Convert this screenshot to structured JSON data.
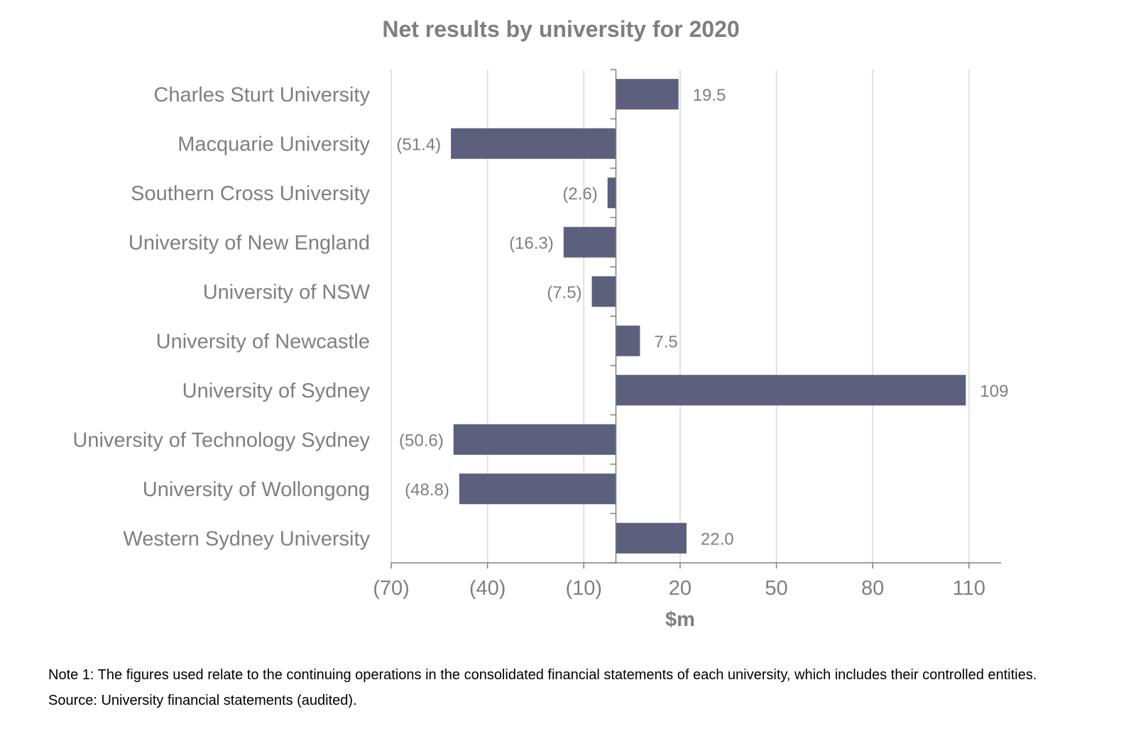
{
  "chart_data": {
    "type": "bar",
    "orientation": "horizontal",
    "title": "Net results by university for 2020",
    "xlabel": "$m",
    "ylabel": "",
    "categories": [
      "Charles Sturt University",
      "Macquarie University",
      "Southern Cross University",
      "University of New England",
      "University of NSW",
      "University of Newcastle",
      "University of Sydney",
      "University of Technology Sydney",
      "University of Wollongong",
      "Western Sydney University"
    ],
    "values": [
      19.5,
      -51.4,
      -2.6,
      -16.3,
      -7.5,
      7.5,
      109,
      -50.6,
      -48.8,
      22.0
    ],
    "data_labels": [
      "19.5",
      "(51.4)",
      "(2.6)",
      "(16.3)",
      "(7.5)",
      "7.5",
      "109",
      "(50.6)",
      "(48.8)",
      "22.0"
    ],
    "xlim": [
      -70,
      120
    ],
    "xticks": [
      -70,
      -40,
      -10,
      20,
      50,
      80,
      110
    ],
    "xtick_labels": [
      "(70)",
      "(40)",
      "(10)",
      "20",
      "50",
      "80",
      "110"
    ],
    "grid": "vertical",
    "legend": "none",
    "bar_color": "#5c607d"
  },
  "notes": {
    "note1": "Note 1: The figures used relate to the continuing operations in the consolidated financial statements of each university, which includes their controlled entities.",
    "source": "Source: University financial statements (audited)."
  }
}
